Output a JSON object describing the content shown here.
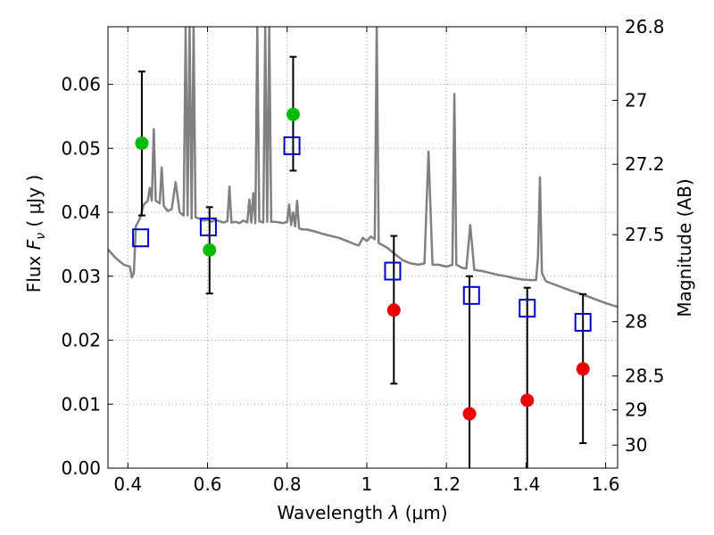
{
  "chart_data": {
    "type": "scatter",
    "title": "",
    "xlabel_prefix": "Wavelength",
    "xlabel_sym": "λ",
    "xlabel_unit": "(μm)",
    "ylabel_prefix": "Flux",
    "ylabel_sym": "F",
    "ylabel_sub": "ν",
    "ylabel_unit": "( μJy )",
    "y2label": "Magnitude (AB)",
    "xlim": [
      0.35,
      1.63
    ],
    "ylim": [
      0.0,
      0.069
    ],
    "grid": true,
    "x_ticks": [
      0.4,
      0.6,
      0.8,
      1.0,
      1.2,
      1.4,
      1.6
    ],
    "x_tick_labels": [
      "0.4",
      "0.6",
      "0.8",
      "1",
      "1.2",
      "1.4",
      "1.6"
    ],
    "y_ticks": [
      0.0,
      0.01,
      0.02,
      0.03,
      0.04,
      0.05,
      0.06
    ],
    "y_tick_labels": [
      "0.00",
      "0.01",
      "0.02",
      "0.03",
      "0.04",
      "0.05",
      "0.06"
    ],
    "y2_ticks": [
      {
        "flux": 0.069,
        "label": "26.8"
      },
      {
        "flux": 0.0575,
        "label": "27"
      },
      {
        "flux": 0.0475,
        "label": "27.2"
      },
      {
        "flux": 0.0365,
        "label": "27.5"
      },
      {
        "flux": 0.0229,
        "label": "28"
      },
      {
        "flux": 0.0144,
        "label": "28.5"
      },
      {
        "flux": 0.0091,
        "label": "29"
      },
      {
        "flux": 0.0036,
        "label": "30"
      }
    ],
    "colors": {
      "model": "#808080",
      "model_points": "#0000cc",
      "green": "#00bb00",
      "red": "#ee0000",
      "errorbar": "#000000",
      "grid": "#999999"
    },
    "series": [
      {
        "marker": "line",
        "points": [
          [
            0.35,
            0.0342
          ],
          [
            0.37,
            0.0328
          ],
          [
            0.39,
            0.0318
          ],
          [
            0.405,
            0.0315
          ],
          [
            0.41,
            0.0298
          ],
          [
            0.415,
            0.0305
          ],
          [
            0.42,
            0.0378
          ],
          [
            0.43,
            0.039
          ],
          [
            0.44,
            0.0412
          ],
          [
            0.45,
            0.0418
          ],
          [
            0.455,
            0.0438
          ],
          [
            0.46,
            0.0418
          ],
          [
            0.465,
            0.053
          ],
          [
            0.47,
            0.0418
          ],
          [
            0.48,
            0.0414
          ],
          [
            0.485,
            0.047
          ],
          [
            0.49,
            0.041
          ],
          [
            0.5,
            0.0402
          ],
          [
            0.51,
            0.0405
          ],
          [
            0.52,
            0.0447
          ],
          [
            0.53,
            0.04
          ],
          [
            0.54,
            0.0395
          ],
          [
            0.545,
            0.069
          ],
          [
            0.55,
            0.0395
          ],
          [
            0.555,
            0.069
          ],
          [
            0.56,
            0.039
          ],
          [
            0.565,
            0.069
          ],
          [
            0.57,
            0.0392
          ],
          [
            0.58,
            0.039
          ],
          [
            0.59,
            0.0387
          ],
          [
            0.6,
            0.0388
          ],
          [
            0.61,
            0.0385
          ],
          [
            0.62,
            0.0388
          ],
          [
            0.63,
            0.0386
          ],
          [
            0.64,
            0.0384
          ],
          [
            0.65,
            0.0386
          ],
          [
            0.655,
            0.044
          ],
          [
            0.66,
            0.0384
          ],
          [
            0.67,
            0.0385
          ],
          [
            0.68,
            0.0383
          ],
          [
            0.69,
            0.0387
          ],
          [
            0.7,
            0.0384
          ],
          [
            0.705,
            0.042
          ],
          [
            0.71,
            0.0384
          ],
          [
            0.715,
            0.043
          ],
          [
            0.72,
            0.0383
          ],
          [
            0.725,
            0.069
          ],
          [
            0.73,
            0.0386
          ],
          [
            0.74,
            0.0384
          ],
          [
            0.745,
            0.069
          ],
          [
            0.75,
            0.0385
          ],
          [
            0.755,
            0.069
          ],
          [
            0.76,
            0.0385
          ],
          [
            0.77,
            0.0385
          ],
          [
            0.78,
            0.0384
          ],
          [
            0.79,
            0.0383
          ],
          [
            0.8,
            0.0385
          ],
          [
            0.805,
            0.0412
          ],
          [
            0.81,
            0.038
          ],
          [
            0.815,
            0.04
          ],
          [
            0.82,
            0.0378
          ],
          [
            0.825,
            0.0418
          ],
          [
            0.83,
            0.0375
          ],
          [
            0.84,
            0.0373
          ],
          [
            0.85,
            0.0373
          ],
          [
            0.87,
            0.037
          ],
          [
            0.89,
            0.0366
          ],
          [
            0.91,
            0.0363
          ],
          [
            0.93,
            0.036
          ],
          [
            0.95,
            0.0355
          ],
          [
            0.97,
            0.035
          ],
          [
            0.98,
            0.0348
          ],
          [
            0.99,
            0.036
          ],
          [
            1.0,
            0.0355
          ],
          [
            1.01,
            0.0362
          ],
          [
            1.02,
            0.0358
          ],
          [
            1.025,
            0.069
          ],
          [
            1.03,
            0.0352
          ],
          [
            1.05,
            0.0345
          ],
          [
            1.07,
            0.0335
          ],
          [
            1.09,
            0.0325
          ],
          [
            1.11,
            0.032
          ],
          [
            1.13,
            0.0318
          ],
          [
            1.145,
            0.032
          ],
          [
            1.155,
            0.0495
          ],
          [
            1.165,
            0.0318
          ],
          [
            1.18,
            0.0318
          ],
          [
            1.2,
            0.0315
          ],
          [
            1.215,
            0.0318
          ],
          [
            1.22,
            0.0585
          ],
          [
            1.225,
            0.0318
          ],
          [
            1.24,
            0.0313
          ],
          [
            1.25,
            0.0312
          ],
          [
            1.26,
            0.038
          ],
          [
            1.27,
            0.031
          ],
          [
            1.29,
            0.0308
          ],
          [
            1.31,
            0.0305
          ],
          [
            1.33,
            0.0302
          ],
          [
            1.35,
            0.03
          ],
          [
            1.37,
            0.0297
          ],
          [
            1.39,
            0.0295
          ],
          [
            1.41,
            0.0294
          ],
          [
            1.425,
            0.0294
          ],
          [
            1.43,
            0.033
          ],
          [
            1.435,
            0.0455
          ],
          [
            1.44,
            0.0305
          ],
          [
            1.45,
            0.0292
          ],
          [
            1.48,
            0.0285
          ],
          [
            1.51,
            0.0278
          ],
          [
            1.54,
            0.0272
          ],
          [
            1.57,
            0.0265
          ],
          [
            1.6,
            0.0258
          ],
          [
            1.63,
            0.0252
          ]
        ]
      },
      {
        "marker": "open-square",
        "points": [
          [
            0.432,
            0.036
          ],
          [
            0.602,
            0.0377
          ],
          [
            0.812,
            0.0504
          ],
          [
            1.065,
            0.0308
          ],
          [
            1.263,
            0.027
          ],
          [
            1.403,
            0.025
          ],
          [
            1.543,
            0.0228
          ]
        ]
      },
      {
        "marker": "circle",
        "color_key": "green",
        "points": [
          {
            "x": 0.435,
            "y": 0.0508,
            "err_lo": 0.0395,
            "err_hi": 0.062
          },
          {
            "x": 0.605,
            "y": 0.0341,
            "err_lo": 0.0273,
            "err_hi": 0.0408
          },
          {
            "x": 0.815,
            "y": 0.0553,
            "err_lo": 0.0465,
            "err_hi": 0.0643
          }
        ]
      },
      {
        "marker": "circle",
        "color_key": "red",
        "points": [
          {
            "x": 1.068,
            "y": 0.0247,
            "err_lo": 0.0132,
            "err_hi": 0.0363
          },
          {
            "x": 1.258,
            "y": 0.0085,
            "err_lo": 0.0,
            "err_hi": 0.03
          },
          {
            "x": 1.403,
            "y": 0.0106,
            "err_lo": 0.0,
            "err_hi": 0.0282
          },
          {
            "x": 1.543,
            "y": 0.0155,
            "err_lo": 0.0039,
            "err_hi": 0.0272
          }
        ]
      }
    ]
  }
}
